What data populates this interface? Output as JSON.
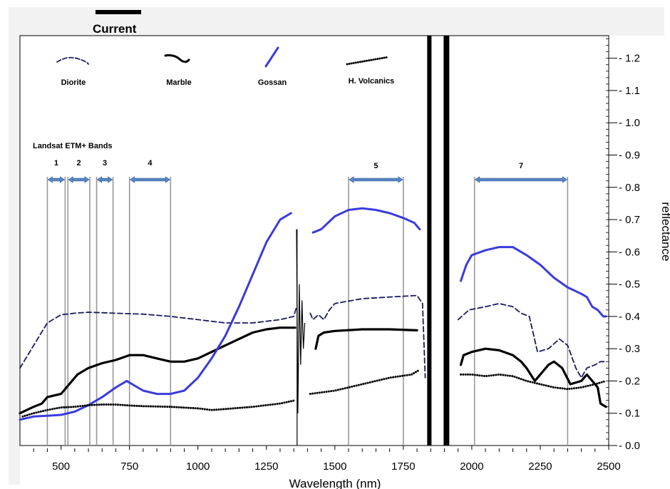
{
  "chart_data": {
    "type": "line",
    "title": "Current",
    "xlabel": "Wavelength (nm)",
    "ylabel": "reflectance",
    "xlim": [
      350,
      2500
    ],
    "ylim": [
      0.0,
      1.27
    ],
    "x_ticks": [
      "500",
      "750",
      "1000",
      "1250",
      "1500",
      "1750",
      "2000",
      "2250",
      "2500"
    ],
    "y_ticks": [
      "0.0",
      "0.1",
      "0.2",
      "0.3",
      "0.4",
      "0.5",
      "0.6",
      "0.7",
      "0.8",
      "0.9",
      "1.0",
      "1.1",
      "1.2"
    ],
    "legend_placement": "top",
    "series": [
      {
        "name": "Diorite",
        "style": "dashed",
        "color": "#1a1a5e",
        "segments": [
          [
            [
              350,
              0.24
            ],
            [
              400,
              0.31
            ],
            [
              450,
              0.38
            ],
            [
              500,
              0.405
            ],
            [
              550,
              0.41
            ],
            [
              600,
              0.413
            ],
            [
              700,
              0.41
            ],
            [
              800,
              0.407
            ],
            [
              900,
              0.4
            ],
            [
              1000,
              0.39
            ],
            [
              1100,
              0.38
            ],
            [
              1200,
              0.38
            ],
            [
              1300,
              0.39
            ],
            [
              1350,
              0.4
            ],
            [
              1360,
              0.43
            ]
          ],
          [
            [
              1410,
              0.41
            ],
            [
              1420,
              0.39
            ],
            [
              1440,
              0.405
            ],
            [
              1460,
              0.39
            ],
            [
              1480,
              0.42
            ],
            [
              1500,
              0.44
            ],
            [
              1600,
              0.455
            ],
            [
              1700,
              0.46
            ],
            [
              1760,
              0.463
            ],
            [
              1800,
              0.465
            ],
            [
              1820,
              0.44
            ],
            [
              1830,
              0.21
            ]
          ],
          [
            [
              1950,
              0.39
            ],
            [
              1990,
              0.42
            ],
            [
              2050,
              0.43
            ],
            [
              2100,
              0.44
            ],
            [
              2150,
              0.43
            ],
            [
              2180,
              0.41
            ],
            [
              2210,
              0.4
            ],
            [
              2240,
              0.29
            ],
            [
              2280,
              0.3
            ],
            [
              2320,
              0.33
            ],
            [
              2350,
              0.31
            ],
            [
              2380,
              0.24
            ],
            [
              2400,
              0.21
            ],
            [
              2420,
              0.24
            ],
            [
              2450,
              0.25
            ],
            [
              2470,
              0.26
            ],
            [
              2490,
              0.26
            ]
          ]
        ]
      },
      {
        "name": "Marble",
        "style": "solid",
        "color": "#000000",
        "segments": [
          [
            [
              350,
              0.1
            ],
            [
              400,
              0.12
            ],
            [
              430,
              0.13
            ],
            [
              450,
              0.15
            ],
            [
              500,
              0.16
            ],
            [
              520,
              0.18
            ],
            [
              560,
              0.22
            ],
            [
              600,
              0.24
            ],
            [
              650,
              0.255
            ],
            [
              700,
              0.265
            ],
            [
              750,
              0.28
            ],
            [
              800,
              0.28
            ],
            [
              850,
              0.27
            ],
            [
              900,
              0.26
            ],
            [
              950,
              0.26
            ],
            [
              1000,
              0.27
            ],
            [
              1100,
              0.31
            ],
            [
              1200,
              0.35
            ],
            [
              1250,
              0.36
            ],
            [
              1300,
              0.365
            ],
            [
              1355,
              0.365
            ]
          ],
          [
            [
              1430,
              0.3
            ],
            [
              1440,
              0.34
            ],
            [
              1460,
              0.35
            ],
            [
              1500,
              0.355
            ],
            [
              1600,
              0.36
            ],
            [
              1700,
              0.36
            ],
            [
              1800,
              0.357
            ]
          ],
          [
            [
              1960,
              0.25
            ],
            [
              1970,
              0.28
            ],
            [
              2000,
              0.29
            ],
            [
              2050,
              0.3
            ],
            [
              2100,
              0.295
            ],
            [
              2150,
              0.28
            ],
            [
              2180,
              0.26
            ],
            [
              2200,
              0.24
            ],
            [
              2230,
              0.2
            ],
            [
              2250,
              0.22
            ],
            [
              2280,
              0.25
            ],
            [
              2300,
              0.26
            ],
            [
              2330,
              0.24
            ],
            [
              2360,
              0.19
            ],
            [
              2400,
              0.2
            ],
            [
              2420,
              0.22
            ],
            [
              2440,
              0.2
            ],
            [
              2460,
              0.18
            ],
            [
              2470,
              0.13
            ],
            [
              2490,
              0.12
            ]
          ]
        ]
      },
      {
        "name": "Gossan",
        "style": "solid",
        "color": "#3b3bdc",
        "segments": [
          [
            [
              350,
              0.08
            ],
            [
              400,
              0.09
            ],
            [
              450,
              0.092
            ],
            [
              500,
              0.095
            ],
            [
              550,
              0.105
            ],
            [
              600,
              0.125
            ],
            [
              650,
              0.15
            ],
            [
              700,
              0.18
            ],
            [
              740,
              0.2
            ],
            [
              760,
              0.19
            ],
            [
              800,
              0.17
            ],
            [
              850,
              0.16
            ],
            [
              900,
              0.16
            ],
            [
              950,
              0.17
            ],
            [
              1000,
              0.21
            ],
            [
              1050,
              0.27
            ],
            [
              1100,
              0.34
            ],
            [
              1150,
              0.43
            ],
            [
              1200,
              0.53
            ],
            [
              1250,
              0.63
            ],
            [
              1300,
              0.7
            ],
            [
              1340,
              0.72
            ]
          ],
          [
            [
              1420,
              0.66
            ],
            [
              1450,
              0.67
            ],
            [
              1500,
              0.71
            ],
            [
              1550,
              0.73
            ],
            [
              1600,
              0.735
            ],
            [
              1650,
              0.73
            ],
            [
              1700,
              0.72
            ],
            [
              1750,
              0.705
            ],
            [
              1790,
              0.69
            ],
            [
              1810,
              0.67
            ]
          ],
          [
            [
              1960,
              0.51
            ],
            [
              1980,
              0.56
            ],
            [
              2000,
              0.59
            ],
            [
              2050,
              0.605
            ],
            [
              2100,
              0.615
            ],
            [
              2150,
              0.615
            ],
            [
              2200,
              0.59
            ],
            [
              2250,
              0.56
            ],
            [
              2300,
              0.52
            ],
            [
              2350,
              0.49
            ],
            [
              2400,
              0.47
            ],
            [
              2420,
              0.46
            ],
            [
              2440,
              0.43
            ],
            [
              2460,
              0.42
            ],
            [
              2480,
              0.4
            ],
            [
              2490,
              0.4
            ]
          ]
        ]
      },
      {
        "name": "H. Volcanics",
        "style": "dotted",
        "color": "#000000",
        "segments": [
          [
            [
              360,
              0.09
            ],
            [
              400,
              0.1
            ],
            [
              450,
              0.11
            ],
            [
              500,
              0.118
            ],
            [
              550,
              0.12
            ],
            [
              600,
              0.125
            ],
            [
              650,
              0.127
            ],
            [
              700,
              0.127
            ],
            [
              750,
              0.124
            ],
            [
              800,
              0.122
            ],
            [
              900,
              0.12
            ],
            [
              1000,
              0.115
            ],
            [
              1050,
              0.11
            ],
            [
              1100,
              0.113
            ],
            [
              1200,
              0.12
            ],
            [
              1300,
              0.13
            ],
            [
              1355,
              0.14
            ]
          ],
          [
            [
              1410,
              0.16
            ],
            [
              1500,
              0.17
            ],
            [
              1600,
              0.19
            ],
            [
              1700,
              0.21
            ],
            [
              1780,
              0.22
            ],
            [
              1810,
              0.235
            ]
          ],
          [
            [
              1960,
              0.22
            ],
            [
              2000,
              0.22
            ],
            [
              2050,
              0.215
            ],
            [
              2100,
              0.22
            ],
            [
              2150,
              0.215
            ],
            [
              2200,
              0.2
            ],
            [
              2250,
              0.19
            ],
            [
              2300,
              0.18
            ],
            [
              2350,
              0.175
            ],
            [
              2400,
              0.18
            ],
            [
              2450,
              0.19
            ],
            [
              2490,
              0.2
            ]
          ]
        ]
      }
    ],
    "annotations": {
      "band_title": "Landsat ETM+ Bands",
      "bands": [
        {
          "label": "1",
          "start": 450,
          "end": 515
        },
        {
          "label": "2",
          "start": 525,
          "end": 605
        },
        {
          "label": "3",
          "start": 630,
          "end": 690
        },
        {
          "label": "4",
          "start": 750,
          "end": 900
        },
        {
          "label": "5",
          "start": 1550,
          "end": 1750
        },
        {
          "label": "7",
          "start": 2010,
          "end": 2350
        }
      ]
    }
  }
}
